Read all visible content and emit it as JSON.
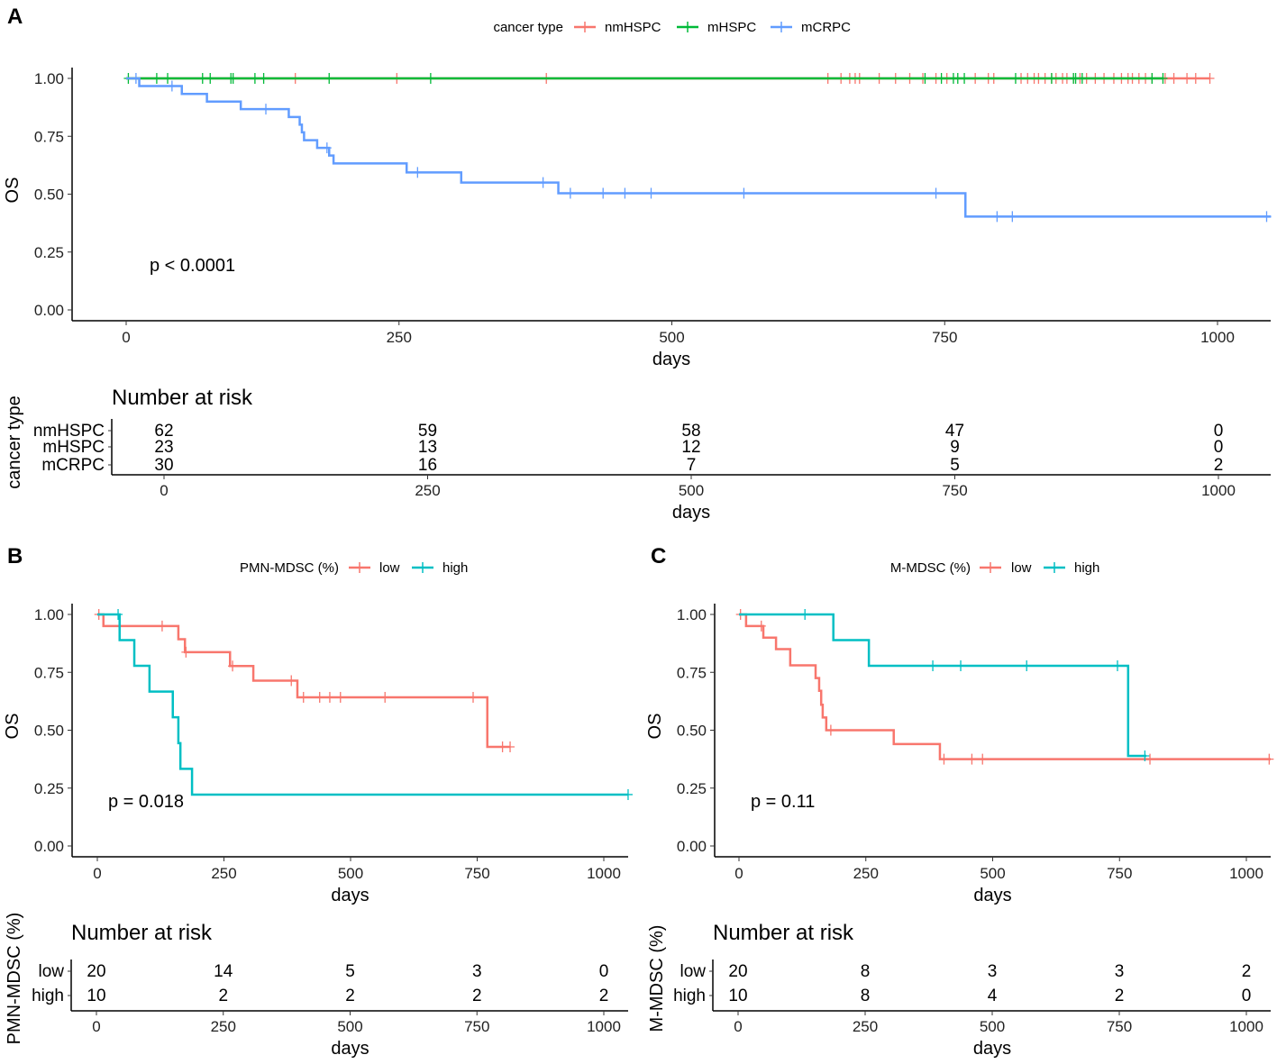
{
  "chart_data": [
    {
      "panel": "A",
      "type": "line",
      "subtype": "kaplan-meier",
      "legend_title": "cancer type",
      "legend_position": "top",
      "xlabel": "days",
      "ylabel": "OS",
      "xlim": [
        0,
        1050
      ],
      "ylim": [
        0,
        1
      ],
      "xticks": [
        "0",
        "250",
        "500",
        "750",
        "1000"
      ],
      "yticks": [
        "0.00",
        "0.25",
        "0.50",
        "0.75",
        "1.00"
      ],
      "pvalue": "p < 0.0001",
      "series": [
        {
          "name": "nmHSPC",
          "color": "#F8766D",
          "steps": [
            [
              0,
              1
            ]
          ],
          "end": 993,
          "censor": [
            155,
            248,
            385,
            643,
            655,
            663,
            668,
            672,
            690,
            705,
            718,
            730,
            742,
            752,
            778,
            790,
            795,
            820,
            826,
            832,
            836,
            842,
            848,
            852,
            858,
            862,
            868,
            874,
            880,
            888,
            896,
            905,
            912,
            918,
            922,
            928,
            934,
            940,
            952,
            960,
            972,
            980,
            993
          ]
        },
        {
          "name": "mHSPC",
          "color": "#00BA38",
          "steps": [
            [
              0,
              1
            ]
          ],
          "end": 950,
          "censor": [
            2,
            28,
            38,
            70,
            77,
            96,
            98,
            118,
            126,
            186,
            279,
            732,
            747,
            758,
            762,
            768,
            815,
            848,
            868,
            870,
            876,
            940,
            950
          ]
        },
        {
          "name": "mCRPC",
          "color": "#619CFF",
          "steps": [
            [
              0,
              1
            ],
            [
              12,
              0.967
            ],
            [
              51,
              0.933
            ],
            [
              74,
              0.9
            ],
            [
              105,
              0.867
            ],
            [
              149,
              0.833
            ],
            [
              159,
              0.8
            ],
            [
              161,
              0.767
            ],
            [
              163,
              0.733
            ],
            [
              175,
              0.7
            ],
            [
              186,
              0.667
            ],
            [
              190,
              0.633
            ],
            [
              257,
              0.594
            ],
            [
              307,
              0.55
            ],
            [
              396,
              0.504
            ],
            [
              769,
              0.403
            ]
          ],
          "end": 1049,
          "censor": [
            9,
            42,
            128,
            184,
            267,
            382,
            407,
            437,
            457,
            481,
            566,
            742,
            798,
            812,
            1045
          ]
        }
      ],
      "risk_table": {
        "title": "Number at risk",
        "ylabel": "cancer type",
        "xlabel": "days",
        "times": [
          "0",
          "250",
          "500",
          "750",
          "1000"
        ],
        "rows": [
          {
            "name": "nmHSPC",
            "color": "#F8766D",
            "values": [
              "62",
              "59",
              "58",
              "47",
              "0"
            ]
          },
          {
            "name": "mHSPC",
            "color": "#00BA38",
            "values": [
              "23",
              "13",
              "12",
              "9",
              "0"
            ]
          },
          {
            "name": "mCRPC",
            "color": "#619CFF",
            "values": [
              "30",
              "16",
              "7",
              "5",
              "2"
            ]
          }
        ]
      }
    },
    {
      "panel": "B",
      "type": "line",
      "subtype": "kaplan-meier",
      "legend_title": "PMN-MDSC (%)",
      "legend_position": "top",
      "xlabel": "days",
      "ylabel": "OS",
      "xlim": [
        0,
        1050
      ],
      "ylim": [
        0,
        1
      ],
      "xticks": [
        "0",
        "250",
        "500",
        "750",
        "1000"
      ],
      "yticks": [
        "0.00",
        "0.25",
        "0.50",
        "0.75",
        "1.00"
      ],
      "pvalue": "p = 0.018",
      "series": [
        {
          "name": "low",
          "color": "#F8766D",
          "steps": [
            [
              0,
              1
            ],
            [
              12,
              0.95
            ],
            [
              160,
              0.893
            ],
            [
              173,
              0.837
            ],
            [
              262,
              0.777
            ],
            [
              308,
              0.714
            ],
            [
              395,
              0.642
            ],
            [
              770,
              0.428
            ]
          ],
          "end": 815,
          "censor": [
            3,
            128,
            175,
            267,
            383,
            407,
            439,
            459,
            480,
            568,
            742,
            800,
            815
          ]
        },
        {
          "name": "high",
          "color": "#00BFC4",
          "steps": [
            [
              0,
              1
            ],
            [
              44,
              0.889
            ],
            [
              73,
              0.778
            ],
            [
              103,
              0.667
            ],
            [
              149,
              0.556
            ],
            [
              160,
              0.444
            ],
            [
              164,
              0.333
            ],
            [
              187,
              0.222
            ]
          ],
          "end": 1048,
          "censor": [
            41,
            1048
          ]
        }
      ],
      "risk_table": {
        "title": "Number at risk",
        "ylabel": "PMN-MDSC (%)",
        "xlabel": "days",
        "times": [
          "0",
          "250",
          "500",
          "750",
          "1000"
        ],
        "rows": [
          {
            "name": "low",
            "color": "#F8766D",
            "values": [
              "20",
              "14",
              "5",
              "3",
              "0"
            ]
          },
          {
            "name": "high",
            "color": "#00BFC4",
            "values": [
              "10",
              "2",
              "2",
              "2",
              "2"
            ]
          }
        ]
      }
    },
    {
      "panel": "C",
      "type": "line",
      "subtype": "kaplan-meier",
      "legend_title": "M-MDSC (%)",
      "legend_position": "top",
      "xlabel": "days",
      "ylabel": "OS",
      "xlim": [
        0,
        1050
      ],
      "ylim": [
        0,
        1
      ],
      "xticks": [
        "0",
        "250",
        "500",
        "750",
        "1000"
      ],
      "yticks": [
        "0.00",
        "0.25",
        "0.50",
        "0.75",
        "1.00"
      ],
      "pvalue": "p = 0.11",
      "series": [
        {
          "name": "low",
          "color": "#F8766D",
          "steps": [
            [
              0,
              1
            ],
            [
              14,
              0.95
            ],
            [
              48,
              0.9
            ],
            [
              73,
              0.85
            ],
            [
              101,
              0.78
            ],
            [
              151,
              0.725
            ],
            [
              158,
              0.67
            ],
            [
              162,
              0.61
            ],
            [
              165,
              0.555
            ],
            [
              172,
              0.5
            ],
            [
              305,
              0.44
            ],
            [
              396,
              0.375
            ]
          ],
          "end": 1048,
          "censor": [
            3,
            44,
            181,
            404,
            459,
            480,
            810,
            1045
          ]
        },
        {
          "name": "high",
          "color": "#00BFC4",
          "steps": [
            [
              0,
              1
            ],
            [
              186,
              0.889
            ],
            [
              256,
              0.778
            ],
            [
              767,
              0.389
            ]
          ],
          "end": 803,
          "censor": [
            130,
            382,
            437,
            567,
            746,
            800
          ]
        }
      ],
      "risk_table": {
        "title": "Number at risk",
        "ylabel": "M-MDSC (%)",
        "xlabel": "days",
        "times": [
          "0",
          "250",
          "500",
          "750",
          "1000"
        ],
        "rows": [
          {
            "name": "low",
            "color": "#F8766D",
            "values": [
              "20",
              "8",
              "3",
              "3",
              "2"
            ]
          },
          {
            "name": "high",
            "color": "#00BFC4",
            "values": [
              "10",
              "8",
              "4",
              "2",
              "0"
            ]
          }
        ]
      }
    }
  ]
}
